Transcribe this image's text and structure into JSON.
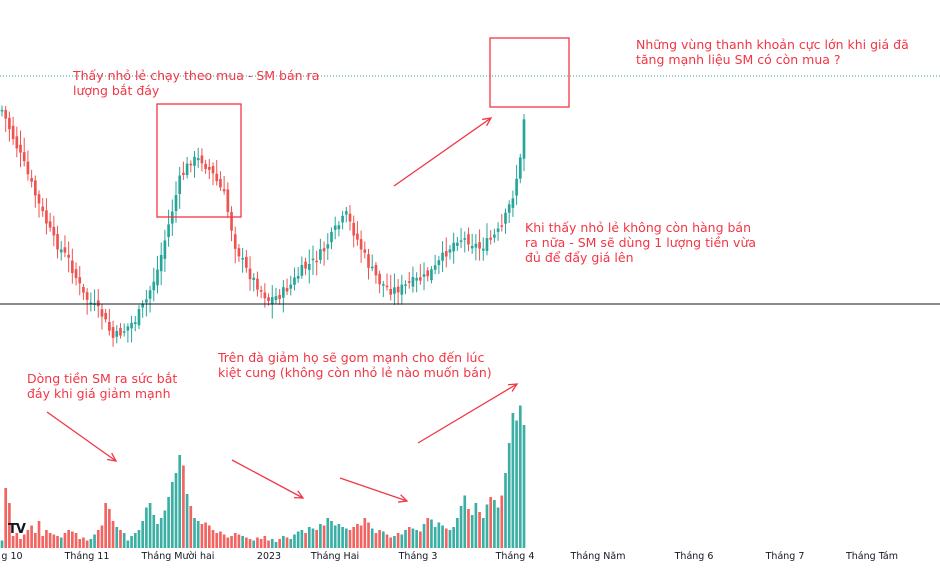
{
  "chart_data": {
    "type": "candlestick",
    "x_axis": {
      "tick_labels": [
        "g 10",
        "Tháng 11",
        "Tháng Mười hai",
        "2023",
        "Tháng Hai",
        "Tháng 3",
        "Tháng 4",
        "Tháng Năm",
        "Tháng 6",
        "Tháng 7",
        "Tháng Tám"
      ]
    },
    "y_axis": {
      "shown": false,
      "grid": false
    },
    "reference_lines": {
      "support_level": "solid horizontal line near the lows",
      "last_price_level": "dotted horizontal line at the latest high"
    },
    "price_series_trend": "decline from October to a low in mid-November, rebound into December, sideways through Feb–March, then a sharp rally into April",
    "volume_series": {
      "colors": {
        "up": "#26a69a",
        "down": "#ef5350"
      },
      "relative_volumes": [
        0.05,
        0.4,
        0.3,
        0.08,
        0.1,
        0.06,
        0.09,
        0.12,
        0.15,
        0.1,
        0.18,
        0.08,
        0.12,
        0.1,
        0.09,
        0.08,
        0.07,
        0.1,
        0.12,
        0.11,
        0.1,
        0.06,
        0.07,
        0.05,
        0.06,
        0.09,
        0.12,
        0.15,
        0.3,
        0.26,
        0.18,
        0.14,
        0.12,
        0.1,
        0.05,
        0.08,
        0.1,
        0.12,
        0.18,
        0.27,
        0.3,
        0.22,
        0.16,
        0.2,
        0.25,
        0.34,
        0.44,
        0.5,
        0.62,
        0.55,
        0.36,
        0.28,
        0.2,
        0.18,
        0.16,
        0.17,
        0.15,
        0.12,
        0.1,
        0.11,
        0.09,
        0.07,
        0.08,
        0.1,
        0.09,
        0.08,
        0.07,
        0.06,
        0.05,
        0.07,
        0.06,
        0.08,
        0.05,
        0.06,
        0.04,
        0.06,
        0.08,
        0.07,
        0.06,
        0.09,
        0.11,
        0.12,
        0.1,
        0.14,
        0.13,
        0.12,
        0.16,
        0.15,
        0.2,
        0.18,
        0.15,
        0.16,
        0.14,
        0.13,
        0.12,
        0.14,
        0.16,
        0.15,
        0.2,
        0.17,
        0.13,
        0.1,
        0.12,
        0.11,
        0.09,
        0.07,
        0.08,
        0.1,
        0.09,
        0.12,
        0.14,
        0.13,
        0.12,
        0.11,
        0.16,
        0.2,
        0.19,
        0.14,
        0.17,
        0.15,
        0.13,
        0.12,
        0.14,
        0.2,
        0.28,
        0.35,
        0.26,
        0.22,
        0.3,
        0.24,
        0.2,
        0.29,
        0.34,
        0.32,
        0.27,
        0.35,
        0.5,
        0.7,
        0.9,
        0.85,
        0.95,
        0.82
      ]
    },
    "highlight_boxes": [
      "December distribution zone",
      "April peak zone"
    ]
  },
  "annotations": [
    {
      "id": "top-right",
      "lines": [
        "Những vùng thanh khoản cực lớn khi giá đã",
        "tăng mạnh liệu SM có còn mua ?"
      ]
    },
    {
      "id": "top-left",
      "lines": [
        "Thấy nhỏ lẻ chạy theo mua - SM bán ra",
        "lượng bắt đáy"
      ]
    },
    {
      "id": "middle-right",
      "lines": [
        "Khi thấy nhỏ lẻ không còn hàng bán",
        "ra nữa - SM sẽ dùng 1 lượng tiền vừa",
        "đủ để đẩy giá lên"
      ]
    },
    {
      "id": "middle",
      "lines": [
        "Trên đà giảm họ sẽ gom mạnh cho đến lúc",
        "kiệt cung (không còn nhỏ lẻ nào muốn bán)"
      ]
    },
    {
      "id": "left",
      "lines": [
        "Dòng tiền SM ra sức bắt",
        "đáy khi giá giảm mạnh"
      ]
    }
  ],
  "colors": {
    "up": "#26a69a",
    "down": "#ef5350",
    "annotation": "#f23645"
  },
  "logo": "TV"
}
